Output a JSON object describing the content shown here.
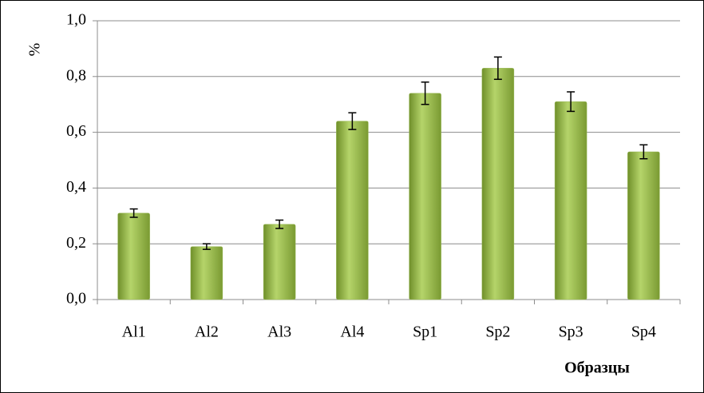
{
  "chart_data": {
    "type": "bar",
    "y_label": "%",
    "x_label": "Образцы",
    "categories": [
      "Al1",
      "Al2",
      "Al3",
      "Al4",
      "Sp1",
      "Sp2",
      "Sp3",
      "Sp4"
    ],
    "values": [
      0.31,
      0.19,
      0.27,
      0.64,
      0.74,
      0.83,
      0.71,
      0.53
    ],
    "errors": [
      0.015,
      0.01,
      0.015,
      0.03,
      0.04,
      0.04,
      0.035,
      0.025
    ],
    "color": "#9bbb59",
    "ylim": [
      0,
      1
    ],
    "yticks": [
      {
        "value": 0,
        "label": "0,0"
      },
      {
        "value": 0.2,
        "label": "0,2"
      },
      {
        "value": 0.4,
        "label": "0,4"
      },
      {
        "value": 0.6,
        "label": "0,6"
      },
      {
        "value": 0.8,
        "label": "0,8"
      },
      {
        "value": 1,
        "label": "1,0"
      }
    ],
    "grid": true
  }
}
